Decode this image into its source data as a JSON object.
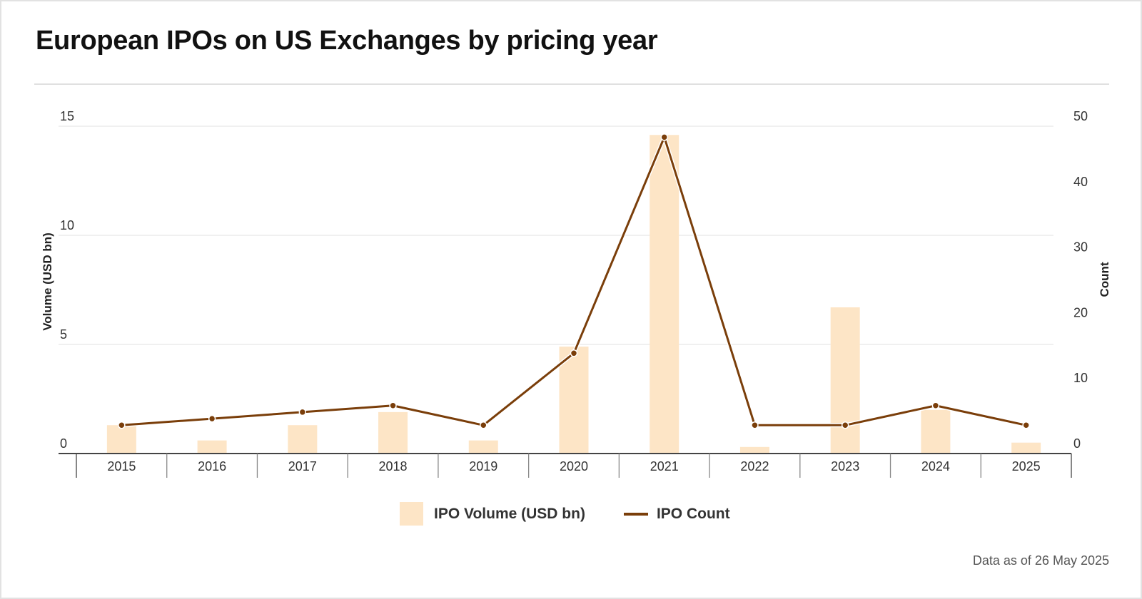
{
  "title": "European IPOs on US Exchanges by pricing year",
  "footer": "Data as of 26 May 2025",
  "colors": {
    "bar": "#FDE5C6",
    "line": "#7A3E0A",
    "grid": "#ececec",
    "axis": "#444444"
  },
  "chart_data": {
    "type": "bar",
    "title": "European IPOs on US Exchanges by pricing year",
    "categories": [
      "2015",
      "2016",
      "2017",
      "2018",
      "2019",
      "2020",
      "2021",
      "2022",
      "2023",
      "2024",
      "2025"
    ],
    "series": [
      {
        "name": "IPO Volume (USD bn)",
        "type": "bar",
        "axis": "left",
        "values": [
          1.3,
          0.6,
          1.3,
          1.9,
          0.6,
          4.9,
          14.6,
          0.3,
          6.7,
          2.0,
          0.5
        ]
      },
      {
        "name": "IPO Count",
        "type": "line",
        "axis": "right",
        "values": [
          4,
          5,
          6,
          7,
          4,
          15,
          48,
          4,
          4,
          7,
          4
        ]
      }
    ],
    "ylabel": "Volume (USD bn)",
    "ylabel_right": "Count",
    "ylim": [
      0,
      15
    ],
    "ylim_right": [
      0,
      50
    ],
    "yticks": [
      "0",
      "5",
      "10",
      "15"
    ],
    "yticks_right": [
      "0",
      "10",
      "20",
      "30",
      "40",
      "50"
    ],
    "grid": true,
    "legend": "bottom-center",
    "legend_entries": [
      "IPO Volume (USD bn)",
      "IPO Count"
    ]
  }
}
